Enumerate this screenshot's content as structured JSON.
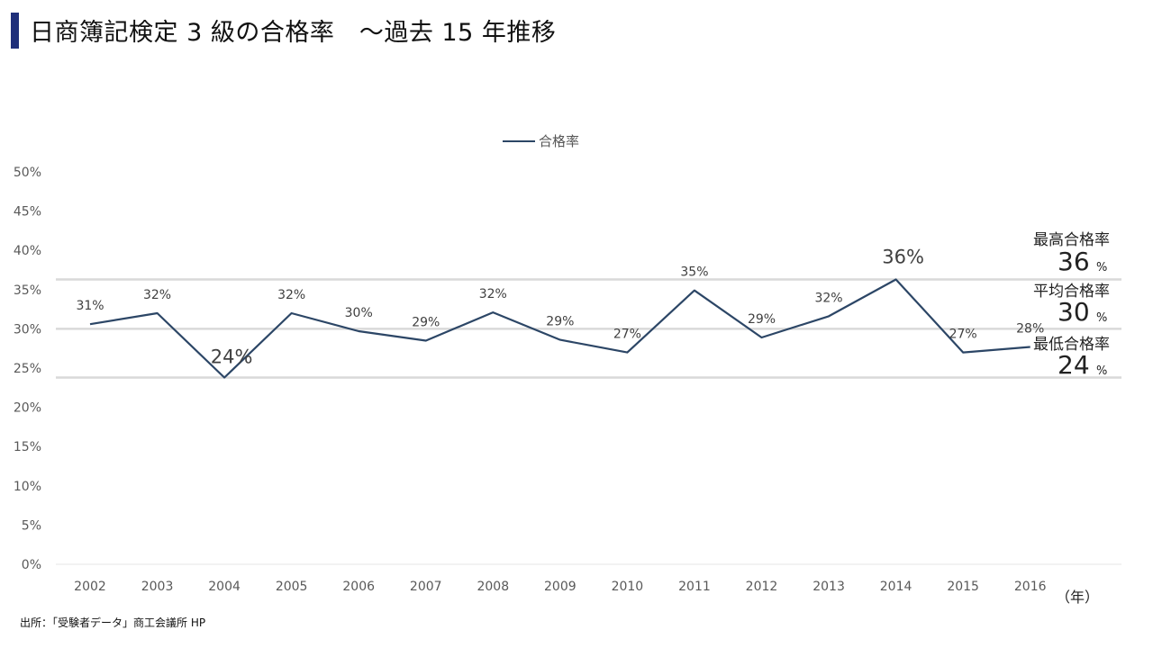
{
  "header": {
    "title": "日商簿記検定 3 級の合格率　～過去 15 年推移"
  },
  "legend": {
    "label": "合格率"
  },
  "chart_data": {
    "type": "line",
    "x": [
      "2002",
      "2003",
      "2004",
      "2005",
      "2006",
      "2007",
      "2008",
      "2009",
      "2010",
      "2011",
      "2012",
      "2013",
      "2014",
      "2015",
      "2016"
    ],
    "series": [
      {
        "name": "合格率",
        "values": [
          30.6,
          32.0,
          23.8,
          32.0,
          29.7,
          28.5,
          32.1,
          28.6,
          27.0,
          34.9,
          28.9,
          31.6,
          36.3,
          27.0,
          27.7
        ]
      }
    ],
    "data_labels": [
      "31%",
      "32%",
      "24%",
      "32%",
      "30%",
      "29%",
      "32%",
      "29%",
      "27%",
      "35%",
      "29%",
      "32%",
      "36%",
      "27%",
      "28%"
    ],
    "y_ticks": [
      "0%",
      "5%",
      "10%",
      "15%",
      "20%",
      "25%",
      "30%",
      "35%",
      "40%",
      "45%",
      "50%"
    ],
    "ylim": [
      0,
      50
    ],
    "reference_lines": [
      36.3,
      30.0,
      23.8
    ],
    "xlabel": "（年）",
    "ylabel": "",
    "grid": false,
    "legend_position": "top-center",
    "line_color": "#2c4666",
    "reference_color": "#d9d9d9"
  },
  "stats": [
    {
      "label": "最高合格率",
      "value": "36",
      "unit": "%"
    },
    {
      "label": "平均合格率",
      "value": "30",
      "unit": "%"
    },
    {
      "label": "最低合格率",
      "value": "24",
      "unit": "%"
    }
  ],
  "x_unit": "（年）",
  "source": "出所：「受験者データ」商工会議所 HP"
}
